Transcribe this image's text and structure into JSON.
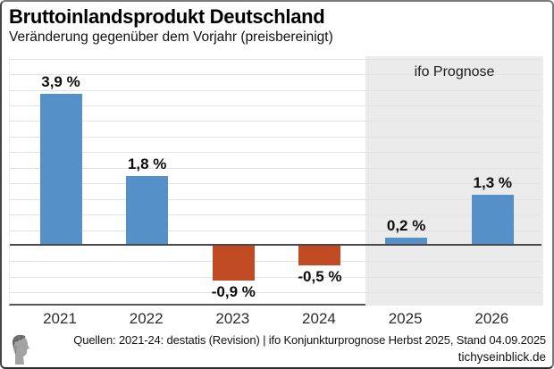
{
  "header": {
    "title": "Bruttoinlandsprodukt Deutschland",
    "subtitle": "Veränderung gegenüber dem Vorjahr (preisbereinigt)"
  },
  "chart_data": {
    "type": "bar",
    "title": "Bruttoinlandsprodukt Deutschland",
    "subtitle": "Veränderung gegenüber dem Vorjahr (preisbereinigt)",
    "categories": [
      "2021",
      "2022",
      "2023",
      "2024",
      "2025",
      "2026"
    ],
    "values": [
      3.9,
      1.8,
      -0.9,
      -0.5,
      0.2,
      1.3
    ],
    "value_labels": [
      "3,9 %",
      "1,8 %",
      "-0,9 %",
      "-0,5 %",
      "0,2 %",
      "1,3 %"
    ],
    "unit": "%",
    "ylim": [
      -1.55,
      4.86
    ],
    "grid": true,
    "grid_step": 0.4,
    "legend_position": "none",
    "forecast": {
      "label": "ifo Prognose",
      "categories": [
        "2025",
        "2026"
      ],
      "background": "#ebebeb"
    }
  },
  "colors": {
    "positive_bar": "#5591c8",
    "negative_bar": "#c04a21",
    "forecast_background": "#ebebeb",
    "gridline": "#e2e2e2",
    "zero_line": "#4a4a4a"
  },
  "footer": {
    "sources": "Quellen: 2021-24: destatis (Revision) | ifo Konjunkturprognose Herbst 2025, Stand 04.09.2025",
    "site": "tichyseinblick.de",
    "logo": "tichys-einblick-head-logo"
  }
}
